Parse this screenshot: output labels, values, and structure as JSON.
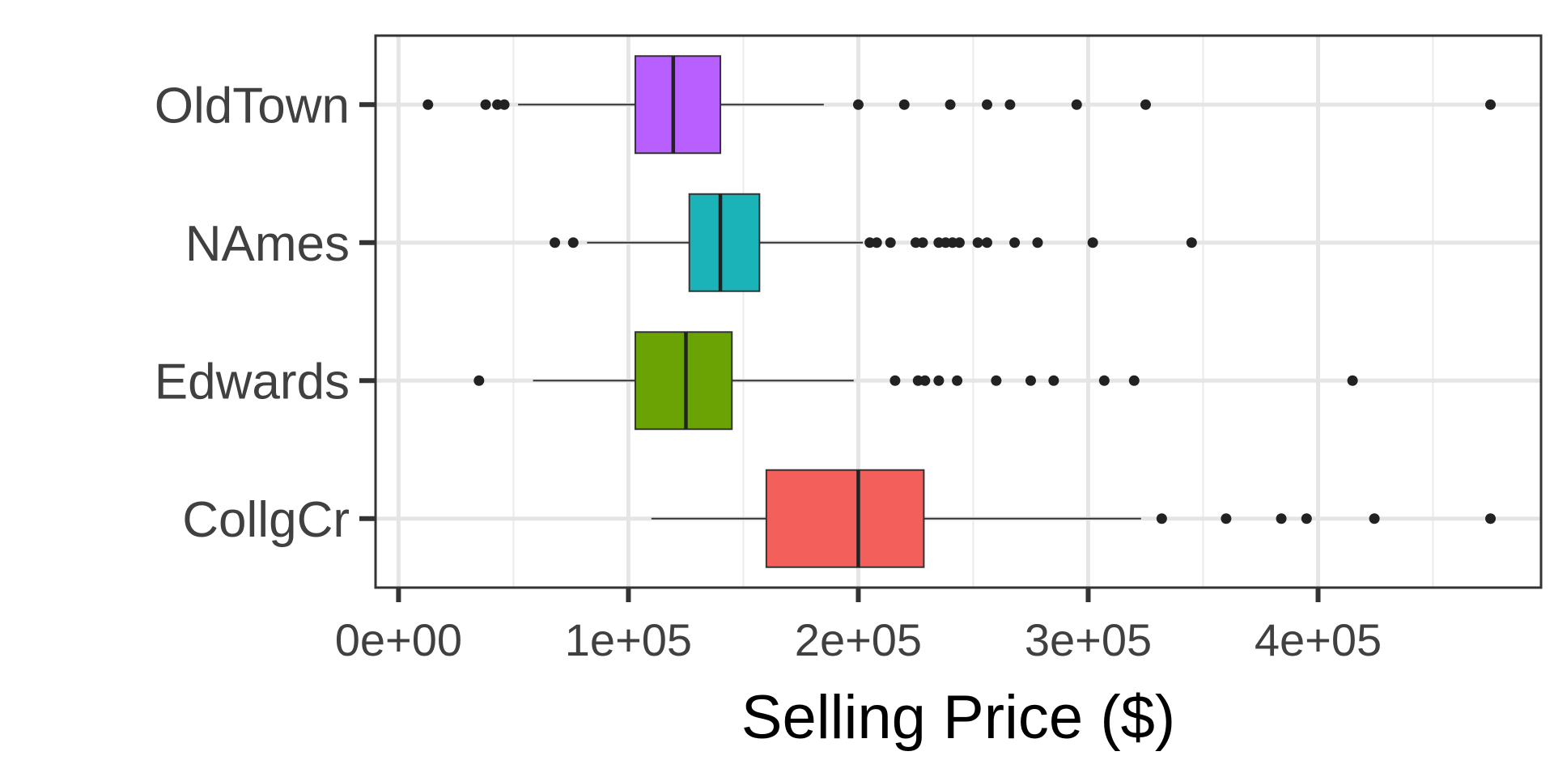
{
  "chart_data": {
    "type": "boxplot",
    "orientation": "horizontal",
    "xlabel": "Selling Price ($)",
    "ylabel": "",
    "xlim": [
      -10000,
      497000
    ],
    "x_ticks": [
      {
        "value": 0,
        "label": "0e+00"
      },
      {
        "value": 100000,
        "label": "1e+05"
      },
      {
        "value": 200000,
        "label": "2e+05"
      },
      {
        "value": 300000,
        "label": "3e+05"
      },
      {
        "value": 400000,
        "label": "4e+05"
      }
    ],
    "x_minor_ticks": [
      50000,
      150000,
      250000,
      350000,
      450000
    ],
    "grid": true,
    "legend": "none",
    "categories": [
      "OldTown",
      "NAmes",
      "Edwards",
      "CollgCr"
    ],
    "series": [
      {
        "category": "OldTown",
        "color": "#B75FFF",
        "whisker_low": 52000,
        "q1": 103000,
        "median": 119500,
        "q3": 140000,
        "whisker_high": 185000,
        "outliers": [
          12800,
          37900,
          43000,
          46000,
          200000,
          220000,
          240000,
          256000,
          266000,
          295000,
          325000,
          475000
        ]
      },
      {
        "category": "NAmes",
        "color": "#1AB4B8",
        "whisker_low": 82000,
        "q1": 126500,
        "median": 140000,
        "q3": 157000,
        "whisker_high": 202000,
        "outliers": [
          68000,
          76000,
          205000,
          208000,
          214000,
          225000,
          228000,
          235000,
          238000,
          241000,
          244000,
          252000,
          256000,
          268000,
          278000,
          302000,
          345000
        ]
      },
      {
        "category": "Edwards",
        "color": "#6CA304",
        "whisker_low": 58500,
        "q1": 103000,
        "median": 125000,
        "q3": 145000,
        "whisker_high": 198000,
        "outliers": [
          35000,
          216000,
          226000,
          229000,
          235000,
          243000,
          260000,
          275000,
          285000,
          307000,
          320000,
          415000
        ]
      },
      {
        "category": "CollgCr",
        "color": "#F3605C",
        "whisker_low": 110000,
        "q1": 160000,
        "median": 200000,
        "q3": 228500,
        "whisker_high": 323000,
        "outliers": [
          332000,
          360000,
          384000,
          395000,
          424500,
          475000
        ]
      }
    ]
  }
}
